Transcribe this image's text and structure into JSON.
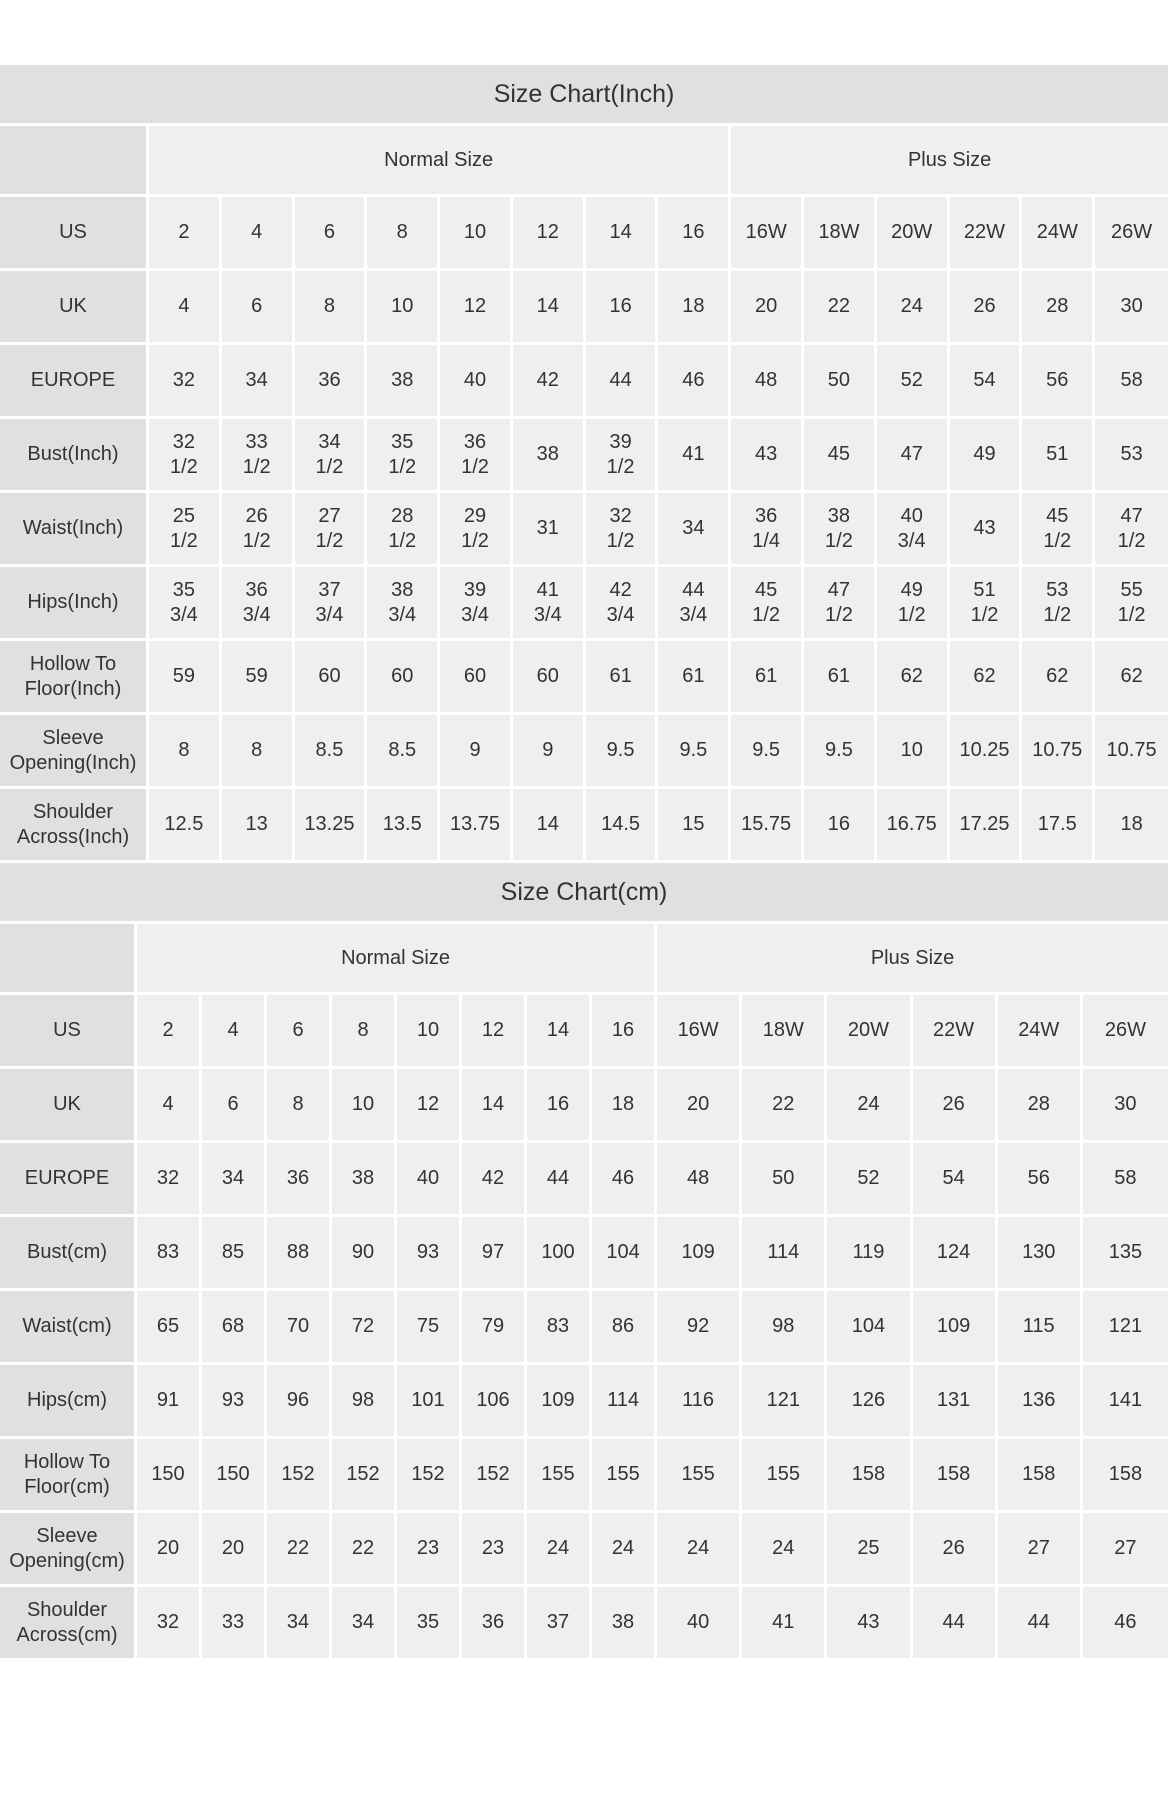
{
  "charts": [
    {
      "id": "inch",
      "title": "Size Chart(Inch)",
      "groups": [
        {
          "label": "Normal Size",
          "span": 8
        },
        {
          "label": "Plus Size",
          "span": 6
        }
      ],
      "rows": [
        {
          "label": "US",
          "values": [
            "2",
            "4",
            "6",
            "8",
            "10",
            "12",
            "14",
            "16",
            "16W",
            "18W",
            "20W",
            "22W",
            "24W",
            "26W"
          ]
        },
        {
          "label": "UK",
          "values": [
            "4",
            "6",
            "8",
            "10",
            "12",
            "14",
            "16",
            "18",
            "20",
            "22",
            "24",
            "26",
            "28",
            "30"
          ]
        },
        {
          "label": "EUROPE",
          "values": [
            "32",
            "34",
            "36",
            "38",
            "40",
            "42",
            "44",
            "46",
            "48",
            "50",
            "52",
            "54",
            "56",
            "58"
          ]
        },
        {
          "label": "Bust(Inch)",
          "values": [
            "32 1/2",
            "33 1/2",
            "34 1/2",
            "35 1/2",
            "36 1/2",
            "38",
            "39 1/2",
            "41",
            "43",
            "45",
            "47",
            "49",
            "51",
            "53"
          ]
        },
        {
          "label": "Waist(Inch)",
          "values": [
            "25 1/2",
            "26 1/2",
            "27 1/2",
            "28 1/2",
            "29 1/2",
            "31",
            "32 1/2",
            "34",
            "36 1/4",
            "38 1/2",
            "40 3/4",
            "43",
            "45 1/2",
            "47 1/2"
          ]
        },
        {
          "label": "Hips(Inch)",
          "values": [
            "35 3/4",
            "36 3/4",
            "37 3/4",
            "38 3/4",
            "39 3/4",
            "41 3/4",
            "42 3/4",
            "44 3/4",
            "45 1/2",
            "47 1/2",
            "49 1/2",
            "51 1/2",
            "53 1/2",
            "55 1/2"
          ]
        },
        {
          "label": "Hollow To Floor(Inch)",
          "values": [
            "59",
            "59",
            "60",
            "60",
            "60",
            "60",
            "61",
            "61",
            "61",
            "61",
            "62",
            "62",
            "62",
            "62"
          ]
        },
        {
          "label": "Sleeve Opening(Inch)",
          "values": [
            "8",
            "8",
            "8.5",
            "8.5",
            "9",
            "9",
            "9.5",
            "9.5",
            "9.5",
            "9.5",
            "10",
            "10.25",
            "10.75",
            "10.75"
          ]
        },
        {
          "label": "Shoulder Across(Inch)",
          "values": [
            "12.5",
            "13",
            "13.25",
            "13.5",
            "13.75",
            "14",
            "14.5",
            "15",
            "15.75",
            "16",
            "16.75",
            "17.25",
            "17.5",
            "18"
          ]
        }
      ]
    },
    {
      "id": "cm",
      "title": "Size Chart(cm)",
      "groups": [
        {
          "label": "Normal Size",
          "span": 8
        },
        {
          "label": "Plus Size",
          "span": 6
        }
      ],
      "rows": [
        {
          "label": "US",
          "values": [
            "2",
            "4",
            "6",
            "8",
            "10",
            "12",
            "14",
            "16",
            "16W",
            "18W",
            "20W",
            "22W",
            "24W",
            "26W"
          ]
        },
        {
          "label": "UK",
          "values": [
            "4",
            "6",
            "8",
            "10",
            "12",
            "14",
            "16",
            "18",
            "20",
            "22",
            "24",
            "26",
            "28",
            "30"
          ]
        },
        {
          "label": "EUROPE",
          "values": [
            "32",
            "34",
            "36",
            "38",
            "40",
            "42",
            "44",
            "46",
            "48",
            "50",
            "52",
            "54",
            "56",
            "58"
          ]
        },
        {
          "label": "Bust(cm)",
          "values": [
            "83",
            "85",
            "88",
            "90",
            "93",
            "97",
            "100",
            "104",
            "109",
            "114",
            "119",
            "124",
            "130",
            "135"
          ]
        },
        {
          "label": "Waist(cm)",
          "values": [
            "65",
            "68",
            "70",
            "72",
            "75",
            "79",
            "83",
            "86",
            "92",
            "98",
            "104",
            "109",
            "115",
            "121"
          ]
        },
        {
          "label": "Hips(cm)",
          "values": [
            "91",
            "93",
            "96",
            "98",
            "101",
            "106",
            "109",
            "114",
            "116",
            "121",
            "126",
            "131",
            "136",
            "141"
          ]
        },
        {
          "label": "Hollow To Floor(cm)",
          "values": [
            "150",
            "150",
            "152",
            "152",
            "152",
            "152",
            "155",
            "155",
            "155",
            "155",
            "158",
            "158",
            "158",
            "158"
          ]
        },
        {
          "label": "Sleeve Opening(cm)",
          "values": [
            "20",
            "20",
            "22",
            "22",
            "23",
            "23",
            "24",
            "24",
            "24",
            "24",
            "25",
            "26",
            "27",
            "27"
          ]
        },
        {
          "label": "Shoulder Across(cm)",
          "values": [
            "32",
            "33",
            "34",
            "34",
            "35",
            "36",
            "37",
            "38",
            "40",
            "41",
            "43",
            "44",
            "44",
            "46"
          ]
        }
      ]
    }
  ]
}
